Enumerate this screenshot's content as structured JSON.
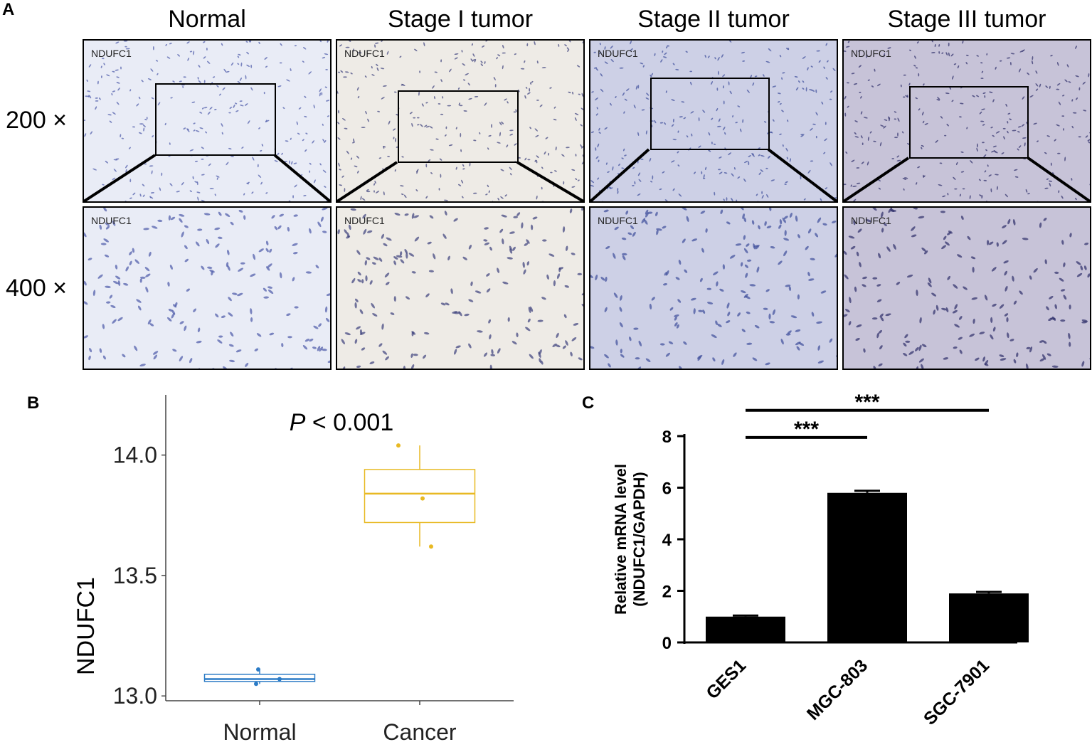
{
  "panels": {
    "a": "A",
    "b": "B",
    "c": "C"
  },
  "panel_a": {
    "columns": [
      "Normal",
      "Stage I tumor",
      "Stage II tumor",
      "Stage III tumor"
    ],
    "rows": [
      "200 ×",
      "400 ×"
    ],
    "stain_label": "NDUFC1",
    "tile_colors": [
      "#e9ecf6",
      "#eeebe6",
      "#cdd0e6",
      "#c7c3d8"
    ],
    "dot_colors": [
      "#4a58a8",
      "#3a3f7a",
      "#3d4d9a",
      "#2e2e6a"
    ]
  },
  "chart_data": [
    {
      "type": "box",
      "title": "P < 0.001",
      "title_italic_part": "P",
      "title_rest": " < 0.001",
      "ylabel": "NDUFC1",
      "xlabel": "",
      "categories": [
        "Normal",
        "Cancer"
      ],
      "ylim": [
        12.98,
        14.25
      ],
      "yticks": [
        13.0,
        13.5,
        14.0
      ],
      "ytick_labels": [
        "13.0",
        "13.5",
        "14.0"
      ],
      "series": [
        {
          "category": "Normal",
          "color": "#2b7bc6",
          "q1": 13.06,
          "median": 13.07,
          "q3": 13.09,
          "whisker_low": 13.05,
          "whisker_high": 13.11,
          "points": [
            13.11,
            13.07,
            13.05
          ]
        },
        {
          "category": "Cancer",
          "color": "#e8b923",
          "q1": 13.72,
          "median": 13.84,
          "q3": 13.94,
          "whisker_low": 13.62,
          "whisker_high": 14.04,
          "points": [
            14.04,
            13.82,
            13.62
          ]
        }
      ]
    },
    {
      "type": "bar",
      "ylabel": "Relative mRNA level\n(NDUFC1/GAPDH)",
      "xlabel": "",
      "categories": [
        "GES1",
        "MGC-803",
        "SGC-7901"
      ],
      "values": [
        1.0,
        5.8,
        1.9
      ],
      "errors": [
        0.04,
        0.08,
        0.06
      ],
      "ylim": [
        0,
        8
      ],
      "yticks": [
        0,
        2,
        4,
        6,
        8
      ],
      "ytick_labels": [
        "0",
        "2",
        "4",
        "6",
        "8"
      ],
      "bar_color": "#000000",
      "significance": [
        {
          "from": "GES1",
          "to": "MGC-803",
          "label": "***"
        },
        {
          "from": "GES1",
          "to": "SGC-7901",
          "label": "***"
        }
      ]
    }
  ]
}
